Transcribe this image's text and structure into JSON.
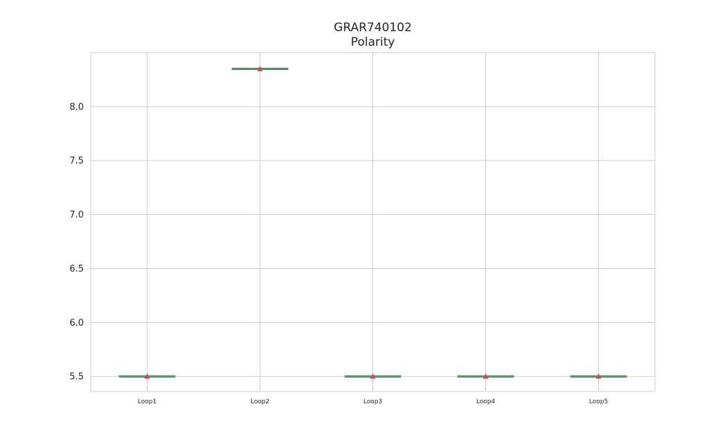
{
  "chart_data": {
    "type": "box",
    "title": "GRAR740102",
    "subtitle": "Polarity",
    "xlabel": "",
    "ylabel": "",
    "categories": [
      "Loop1",
      "Loop2",
      "Loop3",
      "Loop4",
      "Loop5"
    ],
    "values": [
      5.5,
      8.35,
      5.5,
      5.5,
      5.5
    ],
    "means": [
      5.5,
      8.35,
      5.5,
      5.5,
      5.5
    ],
    "ylim": [
      5.36,
      8.5
    ],
    "yticks": [
      5.5,
      6.0,
      6.5,
      7.0,
      7.5,
      8.0
    ],
    "ytick_labels": [
      "5.5",
      "6.0",
      "6.5",
      "7.0",
      "7.5",
      "8.0"
    ],
    "grid": true,
    "colors": {
      "median": "#55a868",
      "mean_marker": "#c44e52",
      "grid": "#cccccc",
      "frame": "#cccccc"
    }
  }
}
